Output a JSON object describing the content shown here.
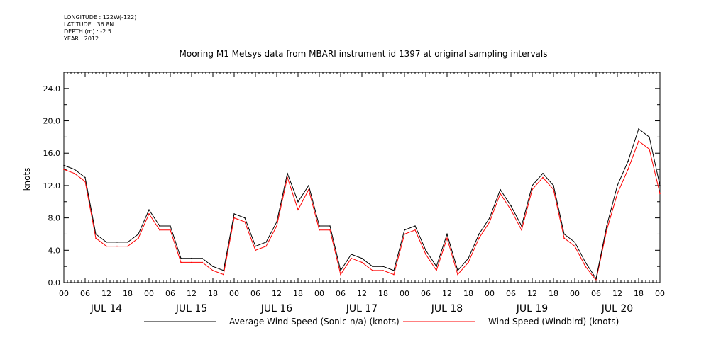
{
  "meta": [
    "LONGITUDE : 122W(-122)",
    "LATITUDE : 36.8N",
    "DEPTH (m) : -2.5",
    "YEAR : 2012"
  ],
  "chart_data": {
    "type": "line",
    "title": "Mooring M1 Metsys data from MBARI instrument id 1397 at original sampling intervals",
    "ylabel": "knots",
    "xlabel": "",
    "xlim": [
      0,
      168
    ],
    "ylim": [
      0,
      26
    ],
    "yticks": [
      "0.0",
      "4.0",
      "8.0",
      "12.0",
      "16.0",
      "20.0",
      "24.0"
    ],
    "hour_ticks": [
      "00",
      "06",
      "12",
      "18",
      "00",
      "06",
      "12",
      "18",
      "00",
      "06",
      "12",
      "18",
      "00",
      "06",
      "12",
      "18",
      "00",
      "06",
      "12",
      "18",
      "00",
      "06",
      "12",
      "18",
      "00",
      "06",
      "12",
      "18",
      "00"
    ],
    "day_labels": [
      "JUL 14",
      "JUL 15",
      "JUL 16",
      "JUL 17",
      "JUL 18",
      "JUL 19",
      "JUL 20"
    ],
    "grid": false,
    "legend_position": "bottom",
    "x": [
      0,
      3,
      6,
      9,
      12,
      15,
      18,
      21,
      24,
      27,
      30,
      33,
      36,
      39,
      42,
      45,
      48,
      51,
      54,
      57,
      60,
      63,
      66,
      69,
      72,
      75,
      78,
      81,
      84,
      87,
      90,
      93,
      96,
      99,
      102,
      105,
      108,
      111,
      114,
      117,
      120,
      123,
      126,
      129,
      132,
      135,
      138,
      141,
      144,
      147,
      150,
      153,
      156,
      159,
      162,
      165,
      168
    ],
    "series": [
      {
        "name": "Average Wind Speed (Sonic-n/a) (knots)",
        "color": "#000000",
        "values": [
          14.5,
          14.0,
          13.0,
          6.0,
          5.0,
          5.0,
          5.0,
          6.0,
          9.0,
          7.0,
          7.0,
          3.0,
          3.0,
          3.0,
          2.0,
          1.5,
          8.5,
          8.0,
          4.5,
          5.0,
          7.5,
          13.5,
          10.0,
          12.0,
          7.0,
          7.0,
          1.5,
          3.5,
          3.0,
          2.0,
          2.0,
          1.5,
          6.5,
          7.0,
          4.0,
          2.0,
          6.0,
          1.5,
          3.0,
          6.0,
          8.0,
          11.5,
          9.5,
          7.0,
          12.0,
          13.5,
          12.0,
          6.0,
          5.0,
          2.5,
          0.5,
          7.0,
          12.0,
          15.0,
          19.0,
          18.0,
          12.0
        ]
      },
      {
        "name": "Wind Speed (Windbird) (knots)",
        "color": "#ff0000",
        "values": [
          14.0,
          13.5,
          12.5,
          5.5,
          4.5,
          4.5,
          4.5,
          5.5,
          8.5,
          6.5,
          6.5,
          2.5,
          2.5,
          2.5,
          1.5,
          1.0,
          8.0,
          7.5,
          4.0,
          4.5,
          7.0,
          13.0,
          9.0,
          11.5,
          6.5,
          6.5,
          1.0,
          3.0,
          2.5,
          1.5,
          1.5,
          1.0,
          6.0,
          6.5,
          3.5,
          1.5,
          5.5,
          1.0,
          2.5,
          5.5,
          7.5,
          11.0,
          9.0,
          6.5,
          11.5,
          13.0,
          11.5,
          5.5,
          4.5,
          2.0,
          0.3,
          6.5,
          11.0,
          14.0,
          17.5,
          16.5,
          11.0
        ]
      }
    ],
    "legend": [
      {
        "label": "Average Wind Speed (Sonic-n/a) (knots)",
        "color": "#000000"
      },
      {
        "label": "Wind Speed (Windbird) (knots)",
        "color": "#ff0000"
      }
    ]
  }
}
